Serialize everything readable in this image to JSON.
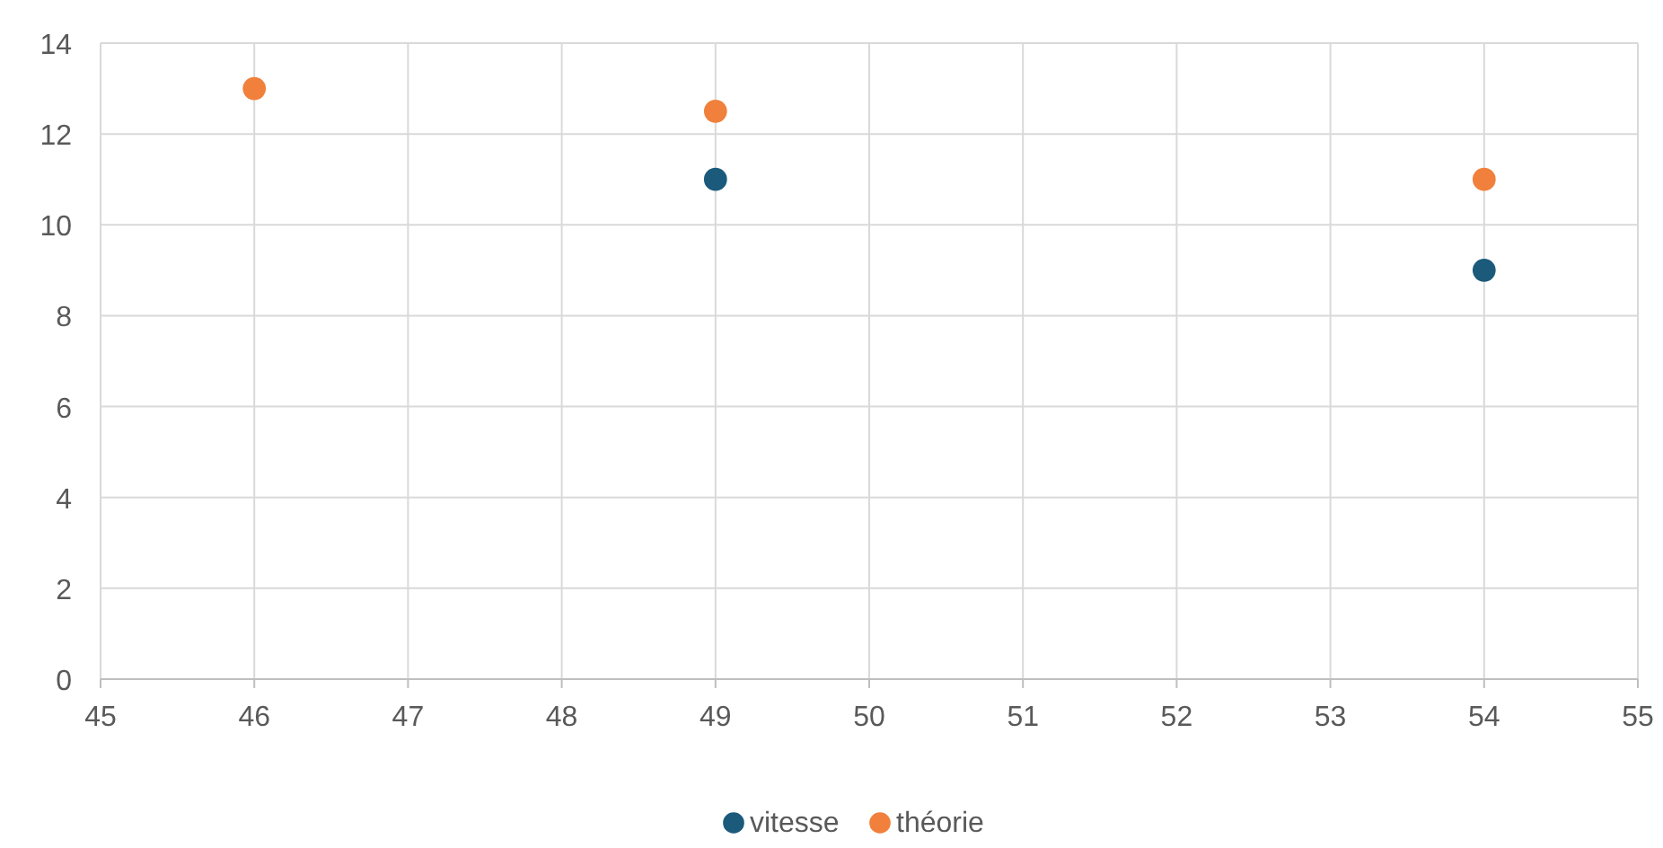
{
  "chart_data": {
    "type": "scatter",
    "series": [
      {
        "name": "vitesse",
        "color": "#1b5a7a",
        "x": [
          49,
          54
        ],
        "values": [
          11,
          9
        ]
      },
      {
        "name": "théorie",
        "color": "#f0803c",
        "x": [
          46,
          49,
          54
        ],
        "values": [
          13,
          12.5,
          11
        ]
      }
    ],
    "xlim": [
      45,
      55
    ],
    "xticks": [
      45,
      46,
      47,
      48,
      49,
      50,
      51,
      52,
      53,
      54,
      55
    ],
    "ylim": [
      0,
      14
    ],
    "yticks": [
      0,
      2,
      4,
      6,
      8,
      10,
      12,
      14
    ],
    "grid": true,
    "legend": "bottom",
    "marker": "circle"
  }
}
